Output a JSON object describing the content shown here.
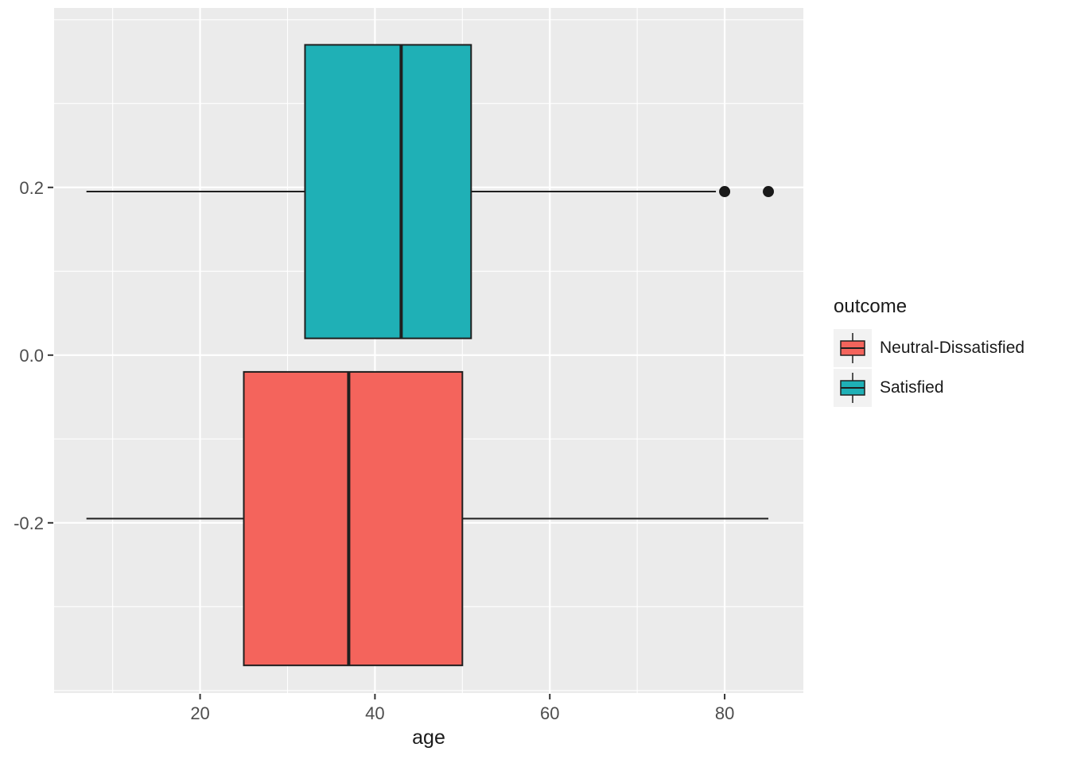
{
  "chart_data": {
    "type": "boxplot",
    "orientation": "horizontal",
    "title": "",
    "xlabel": "age",
    "ylabel": "",
    "x_domain": [
      3.3,
      89.0
    ],
    "y_domain": [
      -0.403,
      0.414
    ],
    "x_ticks": [
      20,
      40,
      60,
      80
    ],
    "x_tick_labels": [
      "20",
      "40",
      "60",
      "80"
    ],
    "x_minor_ticks": [
      10,
      30,
      50,
      70
    ],
    "y_ticks": [
      0.2,
      0.0,
      -0.2
    ],
    "y_tick_labels": [
      "0.2",
      "0.0",
      "-0.2"
    ],
    "y_minor_ticks": [
      0.4,
      0.3,
      0.1,
      -0.1,
      -0.3,
      -0.4
    ],
    "panel_bg": "#EBEBEB",
    "grid_color": "#FFFFFF",
    "tick_label_color": "#4D4D4D",
    "tick_mark_color": "#333333",
    "box_stroke_color": "#1F1F1F",
    "outlier_color": "#1A1A1A",
    "legend_key_bg": "#F2F2F2",
    "series": [
      {
        "name": "Satisfied",
        "color": "#1FB0B6",
        "y_center": 0.195,
        "box_half_height": 0.175,
        "whisker_low": 7,
        "q1": 32,
        "median": 43,
        "q3": 51,
        "whisker_high": 79,
        "outliers": [
          80,
          85
        ]
      },
      {
        "name": "Neutral-Dissatisfied",
        "color": "#F4645C",
        "y_center": -0.195,
        "box_half_height": 0.175,
        "whisker_low": 7,
        "q1": 25,
        "median": 37,
        "q3": 50,
        "whisker_high": 85,
        "outliers": []
      }
    ],
    "legend": {
      "title": "outcome",
      "position": "right",
      "entries": [
        {
          "label": "Neutral-Dissatisfied",
          "color": "#F4645C"
        },
        {
          "label": "Satisfied",
          "color": "#1FB0B6"
        }
      ]
    }
  }
}
